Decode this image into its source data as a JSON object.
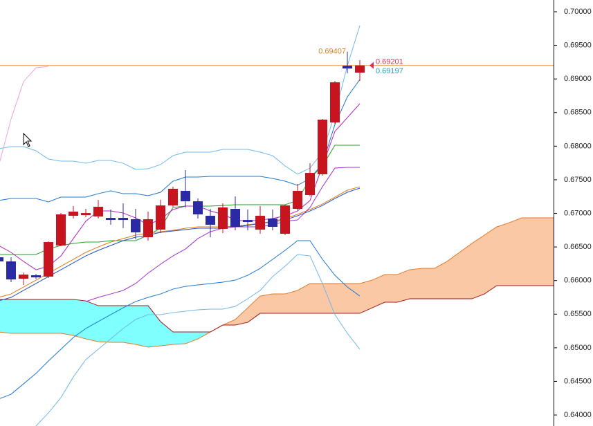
{
  "chart_data": {
    "type": "candlestick",
    "categories": [
      null,
      null,
      null,
      null,
      null,
      null,
      null,
      null,
      null,
      null,
      null,
      null,
      null,
      null,
      null,
      null,
      null,
      null,
      null,
      null,
      null,
      null,
      null,
      null,
      null,
      null,
      null,
      null,
      null,
      null,
      null,
      null,
      null,
      null,
      null,
      null,
      null,
      null,
      null,
      null,
      null,
      null,
      null,
      null,
      null,
      null
    ],
    "ylim": [
      0.63836,
      0.70175
    ],
    "yticks": [
      {
        "value": 0.7,
        "label": "0.70000"
      },
      {
        "value": 0.695,
        "label": "0.69500"
      },
      {
        "value": 0.69,
        "label": "0.69000"
      },
      {
        "value": 0.685,
        "label": "0.68500"
      },
      {
        "value": 0.68,
        "label": "0.68000"
      },
      {
        "value": 0.675,
        "label": "0.67500"
      },
      {
        "value": 0.67,
        "label": "0.67000"
      },
      {
        "value": 0.665,
        "label": "0.66500"
      },
      {
        "value": 0.66,
        "label": "0.66000"
      },
      {
        "value": 0.655,
        "label": "0.65500"
      },
      {
        "value": 0.65,
        "label": "0.65000"
      },
      {
        "value": 0.645,
        "label": "0.64500"
      },
      {
        "value": 0.64,
        "label": "0.64000"
      }
    ],
    "up_color": "#c8141e",
    "down_color": "#2a2aa6",
    "open": [
      0.66347,
      0.66285,
      0.66028,
      0.66079,
      0.66059,
      0.66522,
      0.66964,
      0.66974,
      0.66954,
      0.66933,
      0.66933,
      0.66913,
      0.66645,
      0.66758,
      0.67118,
      0.67335,
      0.6718,
      0.66964,
      0.66769,
      0.67067,
      0.66902,
      0.66758,
      0.66923,
      0.66697,
      0.67067,
      0.67273,
      0.67582,
      0.68353,
      0.69197,
      0.69094,
      null,
      null,
      null,
      null,
      null,
      null,
      null,
      null,
      null,
      null,
      null,
      null,
      null,
      null,
      null,
      null
    ],
    "high": [
      0.66367,
      0.66347,
      0.6612,
      0.661,
      0.66583,
      0.67005,
      0.67108,
      0.67067,
      0.67201,
      0.67057,
      0.67149,
      0.67067,
      0.67026,
      0.67201,
      0.67396,
      0.67643,
      0.67221,
      0.67067,
      0.67149,
      0.67252,
      0.67057,
      0.67108,
      0.67057,
      0.67129,
      0.67438,
      0.67746,
      0.68405,
      0.68971,
      0.69407,
      0.6928,
      null,
      null,
      null,
      null,
      null,
      null,
      null,
      null,
      null,
      null,
      null,
      null,
      null,
      null,
      null,
      null
    ],
    "low": [
      0.66264,
      0.65976,
      0.65935,
      0.66028,
      0.66038,
      0.66511,
      0.66923,
      0.66944,
      0.66923,
      0.6683,
      0.66779,
      0.66614,
      0.66594,
      0.66707,
      0.67098,
      0.67088,
      0.66923,
      0.66645,
      0.66707,
      0.66748,
      0.66748,
      0.66697,
      0.66748,
      0.66676,
      0.67046,
      0.67252,
      0.67561,
      0.68333,
      0.69084,
      0.68971,
      null,
      null,
      null,
      null,
      null,
      null,
      null,
      null,
      null,
      null,
      null,
      null,
      null,
      null,
      null,
      null
    ],
    "close": [
      0.66285,
      0.66017,
      0.66089,
      0.66048,
      0.66573,
      0.66985,
      0.67026,
      0.67005,
      0.67098,
      0.66902,
      0.66902,
      0.66717,
      0.66913,
      0.67118,
      0.67366,
      0.6718,
      0.66985,
      0.6683,
      0.67088,
      0.668,
      0.66872,
      0.66964,
      0.668,
      0.67118,
      0.67335,
      0.67602,
      0.68395,
      0.6895,
      0.69156,
      0.69201,
      null,
      null,
      null,
      null,
      null,
      null,
      null,
      null,
      null,
      null,
      null,
      null,
      null,
      null,
      null,
      null
    ],
    "cloud": {
      "bull_fill": "#fbc8a6",
      "bear_fill": "#80ffff",
      "span_a": {
        "color": "#e07828",
        "values": [
          0.65235,
          0.65215,
          0.65215,
          0.65215,
          0.65215,
          0.65215,
          0.65184,
          0.65132,
          0.65091,
          0.65081,
          0.65081,
          0.6505,
          0.65009,
          0.65029,
          0.6505,
          0.6506,
          0.65132,
          0.65235,
          0.65338,
          0.65421,
          0.65595,
          0.6577,
          0.65801,
          0.65801,
          0.65853,
          0.65956,
          0.65956,
          0.65956,
          0.65956,
          0.65956,
          0.66007,
          0.66089,
          0.66089,
          0.66161,
          0.66182,
          0.66182,
          0.66285,
          0.66419,
          0.66553,
          0.66676,
          0.668,
          0.66861,
          0.66933,
          0.66933,
          0.66933,
          0.66933
        ]
      },
      "span_b": {
        "color": "#a01818",
        "values": [
          0.65719,
          0.65719,
          0.65719,
          0.65719,
          0.65719,
          0.65719,
          0.65719,
          0.65698,
          0.65626,
          0.65626,
          0.65626,
          0.65626,
          0.65626,
          0.6539,
          0.65235,
          0.65235,
          0.65235,
          0.65235,
          0.65338,
          0.65338,
          0.65379,
          0.65513,
          0.65513,
          0.65513,
          0.65513,
          0.65513,
          0.65513,
          0.65513,
          0.65513,
          0.65513,
          0.65595,
          0.65678,
          0.65678,
          0.65729,
          0.65729,
          0.65729,
          0.65729,
          0.65729,
          0.65729,
          0.65801,
          0.65925,
          0.65925,
          0.65925,
          0.65925,
          0.65925,
          0.65925
        ]
      }
    },
    "lines": [
      {
        "color": "#70b8e8",
        "values": [
          0.67962,
          0.67993,
          0.67993,
          0.67932,
          0.67808,
          0.67777,
          0.67777,
          0.67746,
          0.67787,
          0.67787,
          0.67746,
          0.67654,
          0.67664,
          0.67726,
          0.67859,
          0.67911,
          0.67911,
          0.67911,
          0.67952,
          0.67952,
          0.67952,
          0.67911,
          0.67859,
          0.67705,
          0.67582,
          0.67674,
          0.67911,
          0.68477,
          0.69197,
          0.69794,
          null,
          null,
          null,
          null,
          null,
          null,
          null,
          null,
          null,
          null,
          null,
          null,
          null,
          null,
          null,
          null
        ]
      },
      {
        "color": "#1a78d0",
        "values": [
          0.67191,
          0.67221,
          0.67221,
          0.67221,
          0.6717,
          0.67242,
          0.67242,
          0.67242,
          0.67293,
          0.67335,
          0.67293,
          0.67293,
          0.67263,
          0.67314,
          0.67479,
          0.6754,
          0.6754,
          0.67551,
          0.67551,
          0.67551,
          0.67551,
          0.67551,
          0.6752,
          0.67479,
          0.67417,
          0.6752,
          0.67736,
          0.68322,
          0.68734,
          0.68991,
          null,
          null,
          null,
          null,
          null,
          null,
          null,
          null,
          null,
          null,
          null,
          null,
          null,
          null,
          null,
          null
        ]
      },
      {
        "color": "#1a78d0",
        "values": [
          0.64237,
          0.64309,
          0.64463,
          0.64618,
          0.64803,
          0.64978,
          0.65153,
          0.65287,
          0.6539,
          0.65493,
          0.65595,
          0.65688,
          0.6575,
          0.65801,
          0.65873,
          0.65914,
          0.65935,
          0.65956,
          0.65976,
          0.66007,
          0.66079,
          0.66182,
          0.66316,
          0.6645,
          0.66594,
          0.66594,
          0.66316,
          0.66079,
          0.65904,
          0.6577,
          null,
          null,
          null,
          null,
          null,
          null,
          null,
          null,
          null,
          null,
          null,
          null,
          null,
          null,
          null,
          null
        ]
      },
      {
        "color": "#70b8e8",
        "values": [
          null,
          null,
          null,
          0.63836,
          0.64031,
          0.64258,
          0.64566,
          0.64824,
          0.64978,
          0.65132,
          0.65287,
          0.65421,
          0.65493,
          0.65493,
          0.65523,
          0.65544,
          0.65565,
          0.65575,
          0.65575,
          0.65616,
          0.65729,
          0.65853,
          0.66059,
          0.66213,
          0.66388,
          0.66367,
          0.65956,
          0.65493,
          0.65215,
          0.64978,
          null,
          null,
          null,
          null,
          null,
          null,
          null,
          null,
          null,
          null,
          null,
          null,
          null,
          null,
          null,
          null
        ]
      },
      {
        "color": "#20a020",
        "values": [
          0.66388,
          0.66388,
          0.66388,
          0.66388,
          0.6647,
          0.66522,
          0.66553,
          0.66573,
          0.66573,
          0.66594,
          0.66594,
          0.66594,
          0.66676,
          0.66779,
          0.67088,
          0.67108,
          0.67108,
          0.67108,
          0.67118,
          0.67129,
          0.67129,
          0.67129,
          0.67129,
          0.67129,
          0.67191,
          0.6752,
          0.67705,
          0.68014,
          0.68014,
          0.68014,
          null,
          null,
          null,
          null,
          null,
          null,
          null,
          null,
          null,
          null,
          null,
          null,
          null,
          null,
          null,
          null
        ]
      },
      {
        "color": "#e07818",
        "values": [
          0.6575,
          0.65801,
          0.65904,
          0.66007,
          0.6611,
          0.66213,
          0.66316,
          0.66419,
          0.66501,
          0.66573,
          0.66625,
          0.66676,
          0.66707,
          0.66727,
          0.66748,
          0.66779,
          0.668,
          0.668,
          0.668,
          0.6681,
          0.6683,
          0.66851,
          0.66882,
          0.66923,
          0.66985,
          0.67057,
          0.67139,
          0.67242,
          0.67345,
          0.67396,
          null,
          null,
          null,
          null,
          null,
          null,
          null,
          null,
          null,
          null,
          null,
          null,
          null,
          null,
          null,
          null
        ]
      },
      {
        "color": "#2050c0",
        "values": [
          0.65698,
          0.6575,
          0.65853,
          0.65956,
          0.66059,
          0.66161,
          0.66264,
          0.66367,
          0.6645,
          0.66522,
          0.66594,
          0.66645,
          0.66676,
          0.66717,
          0.66738,
          0.66758,
          0.66779,
          0.66779,
          0.66779,
          0.668,
          0.6682,
          0.66851,
          0.66872,
          0.66902,
          0.66964,
          0.67036,
          0.67118,
          0.67221,
          0.67314,
          0.67376,
          null,
          null,
          null,
          null,
          null,
          null,
          null,
          null,
          null,
          null,
          null,
          null,
          null,
          null,
          null,
          null
        ]
      },
      {
        "color": "#b020c0",
        "values": [
          0.66522,
          0.66419,
          0.66285,
          0.66161,
          0.66213,
          0.66367,
          0.66625,
          0.66882,
          0.67036,
          0.67036,
          0.67005,
          0.66933,
          0.6683,
          0.66913,
          0.67057,
          0.67108,
          0.67108,
          0.67036,
          0.66985,
          0.66902,
          0.66882,
          0.66902,
          0.66923,
          0.66964,
          0.67036,
          0.67191,
          0.67705,
          0.6822,
          0.68425,
          0.68631,
          null,
          null,
          null,
          null,
          null,
          null,
          null,
          null,
          null,
          null,
          null,
          null,
          null,
          null,
          null,
          null
        ]
      },
      {
        "color": "#a030d0",
        "values": [
          null,
          null,
          null,
          null,
          null,
          null,
          null,
          0.65688,
          0.6575,
          0.65801,
          0.65853,
          0.65956,
          0.6611,
          0.66244,
          0.66367,
          0.6647,
          0.66625,
          0.66727,
          0.66779,
          0.668,
          0.668,
          0.668,
          0.6683,
          0.66882,
          0.66902,
          0.67088,
          0.67396,
          0.67674,
          0.67685,
          0.67685,
          null,
          null,
          null,
          null,
          null,
          null,
          null,
          null,
          null,
          null,
          null,
          null,
          null,
          null,
          null,
          null
        ]
      },
      {
        "color": "#f0a0d0",
        "values": [
          0.67705,
          0.68405,
          0.68961,
          0.69166,
          0.69187,
          null,
          null,
          null,
          null,
          null,
          null,
          null,
          null,
          null,
          null,
          null,
          null,
          null,
          null,
          null,
          null,
          null,
          null,
          null,
          null,
          null,
          null,
          null,
          null,
          null,
          null,
          null,
          null,
          null,
          null,
          null,
          null,
          null,
          null,
          null,
          null,
          null,
          null,
          null,
          null,
          null
        ]
      }
    ],
    "price_line_color": "#e8a060",
    "high_label": {
      "value": 0.69407,
      "color": "#d88020"
    },
    "price_labels": [
      {
        "value": 0.69201,
        "color": "#d8305a"
      },
      {
        "value": 0.69197,
        "color": "#1aa0c0"
      }
    ]
  }
}
